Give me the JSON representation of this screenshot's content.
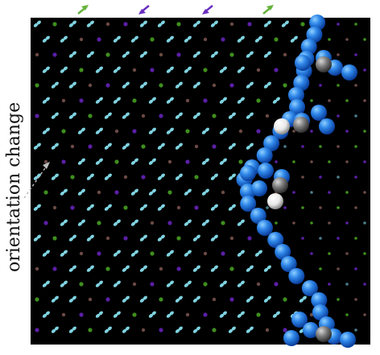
{
  "figure": {
    "side_label": "orientation change",
    "panel_background": "#000000",
    "arrow_marker_colors": [
      "#66b33b",
      "#6a2fbf",
      "#6a2fbf",
      "#66b33b"
    ],
    "colors": {
      "cyan_particle": "#7fd3e0",
      "purple_particle": "#5b1fa6",
      "green_particle": "#3f8f1e",
      "brown_particle": "#6b4a45",
      "domain_wall_sphere": "#2e86e8",
      "defect_grey": "#7a7a7a",
      "defect_white": "#e8e8e8"
    },
    "icons": [
      "arrow-up-right-icon",
      "arrow-down-left-icon",
      "dashed-pointer-arrow-icon"
    ]
  }
}
